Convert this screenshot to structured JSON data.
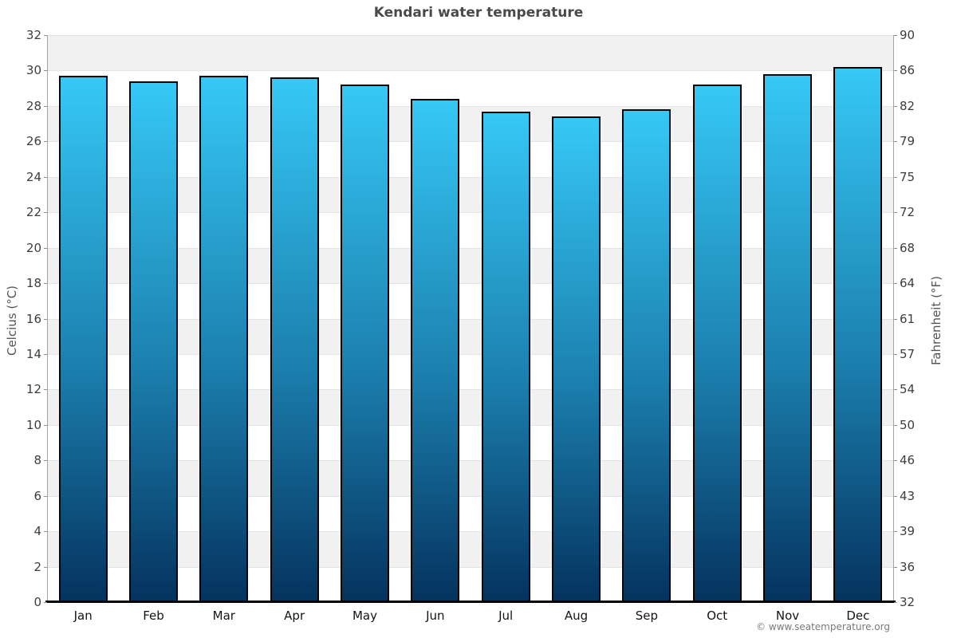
{
  "title": "Kendari water temperature",
  "footer": {
    "copyright": "© www.seatemperature.org"
  },
  "chart_data": {
    "type": "bar",
    "title": "Kendari water temperature",
    "categories": [
      "Jan",
      "Feb",
      "Mar",
      "Apr",
      "May",
      "Jun",
      "Jul",
      "Aug",
      "Sep",
      "Oct",
      "Nov",
      "Dec"
    ],
    "values": [
      29.7,
      29.4,
      29.7,
      29.6,
      29.2,
      28.4,
      27.7,
      27.4,
      27.8,
      29.2,
      29.8,
      30.2
    ],
    "unit": "°C",
    "xlabel": "",
    "ylabel_left": "Celcius (°C)",
    "ylabel_right": "Fahrenheit (°F)",
    "ylim": [
      0,
      32
    ],
    "yticks_left": [
      32,
      30,
      28,
      26,
      24,
      22,
      20,
      18,
      16,
      14,
      12,
      10,
      8,
      6,
      4,
      2,
      0
    ],
    "yticks_right": [
      90,
      86,
      82,
      79,
      75,
      72,
      68,
      64,
      61,
      57,
      54,
      50,
      46,
      43,
      39,
      36,
      32
    ],
    "grid": "horizontal gridlines every 2°C with alternating shaded bands",
    "legend_position": "none",
    "colors": {
      "bar_gradient_top": "#36c8f6",
      "bar_gradient_bottom": "#05325e",
      "bar_border": "#050505",
      "band_shaded": "#f1f1f1",
      "band_plain": "#ffffff",
      "gridline": "#e4e4e4",
      "side_axis_line": "#a3a3a3",
      "bottom_axis_line": "#000000",
      "title_text": "#4a4a4a",
      "tick_text": "#3d3d3d",
      "month_text": "#141414",
      "axis_label_text": "#555555",
      "copyright_text": "#7a7a7a"
    }
  }
}
